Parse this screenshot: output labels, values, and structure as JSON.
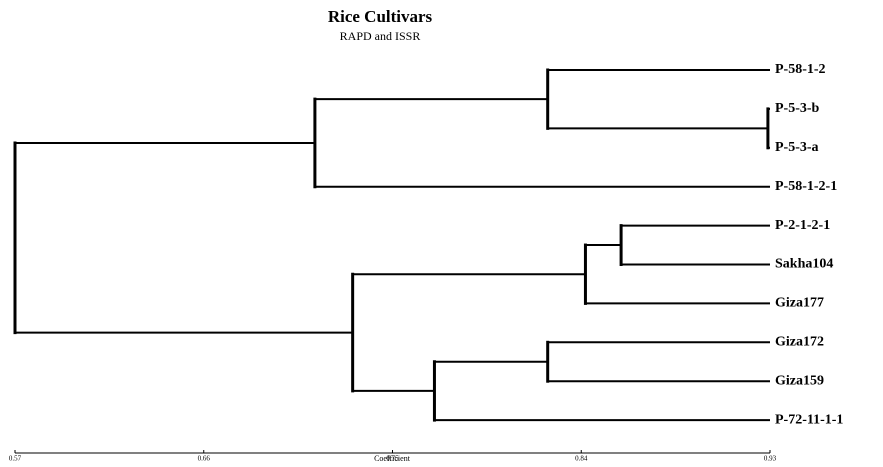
{
  "chart_data": {
    "type": "dendrogram",
    "title": "Rice Cultivars",
    "subtitle": "RAPD and ISSR",
    "x_label": "Coefficient",
    "xlim": [
      0.57,
      0.93
    ],
    "xticks": [
      0.57,
      0.66,
      0.75,
      0.84,
      0.93
    ],
    "color": "#000000",
    "tree": {
      "height": 0.57,
      "children": [
        {
          "height": 0.713,
          "children": [
            {
              "height": 0.824,
              "children": [
                {
                  "name": "P-58-1-2"
                },
                {
                  "height": 0.929,
                  "children": [
                    {
                      "name": "P-5-3-b"
                    },
                    {
                      "name": "P-5-3-a"
                    }
                  ]
                }
              ]
            },
            {
              "name": "P-58-1-2-1"
            }
          ]
        },
        {
          "height": 0.731,
          "children": [
            {
              "height": 0.842,
              "children": [
                {
                  "height": 0.859,
                  "children": [
                    {
                      "name": "P-2-1-2-1"
                    },
                    {
                      "name": "Sakha104"
                    }
                  ]
                },
                {
                  "name": "Giza177"
                }
              ]
            },
            {
              "height": 0.77,
              "children": [
                {
                  "height": 0.824,
                  "children": [
                    {
                      "name": "Giza172"
                    },
                    {
                      "name": "Giza159"
                    }
                  ]
                },
                {
                  "name": "P-72-11-1-1"
                }
              ]
            }
          ]
        }
      ]
    }
  }
}
